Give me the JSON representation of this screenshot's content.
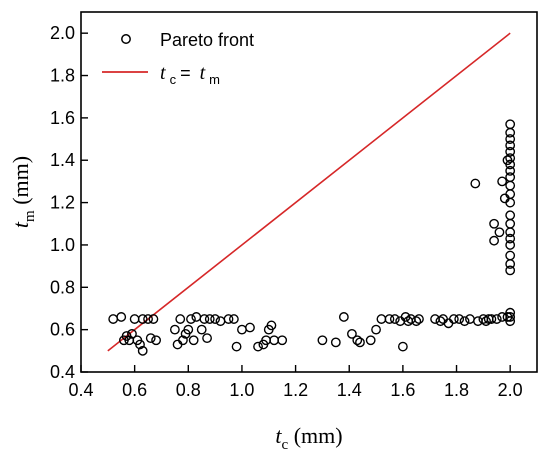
{
  "chart_data": {
    "type": "scatter",
    "x_axis": {
      "label_main": "t",
      "label_sub": "c",
      "label_unit": " (mm)",
      "range": [
        0.4,
        2.1
      ],
      "ticks": [
        0.4,
        0.6,
        0.8,
        1.0,
        1.2,
        1.4,
        1.6,
        1.8,
        2.0
      ],
      "tick_labels": [
        "0.4",
        "0.6",
        "0.8",
        "1.0",
        "1.2",
        "1.4",
        "1.6",
        "1.8",
        "2.0"
      ]
    },
    "y_axis": {
      "label_main": "t",
      "label_sub": "m",
      "label_unit": " (mm)",
      "range": [
        0.4,
        2.1
      ],
      "ticks": [
        0.4,
        0.6,
        0.8,
        1.0,
        1.2,
        1.4,
        1.6,
        1.8,
        2.0
      ],
      "tick_labels": [
        "0.4",
        "0.6",
        "0.8",
        "1.0",
        "1.2",
        "1.4",
        "1.6",
        "1.8",
        "2.0"
      ]
    },
    "grid": false,
    "legend_position": "top-left",
    "series": [
      {
        "name": "Pareto front",
        "kind": "scatter",
        "marker": "open-circle",
        "color": "#000000",
        "points": [
          [
            0.52,
            0.65
          ],
          [
            0.55,
            0.66
          ],
          [
            0.57,
            0.57
          ],
          [
            0.58,
            0.55
          ],
          [
            0.59,
            0.58
          ],
          [
            0.6,
            0.65
          ],
          [
            0.61,
            0.55
          ],
          [
            0.62,
            0.53
          ],
          [
            0.63,
            0.5
          ],
          [
            0.63,
            0.65
          ],
          [
            0.65,
            0.65
          ],
          [
            0.66,
            0.56
          ],
          [
            0.67,
            0.65
          ],
          [
            0.68,
            0.55
          ],
          [
            0.56,
            0.55
          ],
          [
            0.75,
            0.6
          ],
          [
            0.76,
            0.53
          ],
          [
            0.77,
            0.65
          ],
          [
            0.78,
            0.55
          ],
          [
            0.79,
            0.58
          ],
          [
            0.8,
            0.6
          ],
          [
            0.81,
            0.65
          ],
          [
            0.82,
            0.55
          ],
          [
            0.83,
            0.66
          ],
          [
            0.85,
            0.6
          ],
          [
            0.86,
            0.65
          ],
          [
            0.87,
            0.56
          ],
          [
            0.88,
            0.65
          ],
          [
            0.9,
            0.65
          ],
          [
            0.92,
            0.64
          ],
          [
            0.95,
            0.65
          ],
          [
            0.97,
            0.65
          ],
          [
            0.98,
            0.52
          ],
          [
            1.0,
            0.6
          ],
          [
            1.03,
            0.61
          ],
          [
            1.06,
            0.52
          ],
          [
            1.08,
            0.53
          ],
          [
            1.09,
            0.55
          ],
          [
            1.1,
            0.6
          ],
          [
            1.11,
            0.62
          ],
          [
            1.12,
            0.55
          ],
          [
            1.15,
            0.55
          ],
          [
            1.3,
            0.55
          ],
          [
            1.35,
            0.54
          ],
          [
            1.38,
            0.66
          ],
          [
            1.41,
            0.58
          ],
          [
            1.43,
            0.55
          ],
          [
            1.44,
            0.54
          ],
          [
            1.48,
            0.55
          ],
          [
            1.5,
            0.6
          ],
          [
            1.52,
            0.65
          ],
          [
            1.55,
            0.65
          ],
          [
            1.57,
            0.65
          ],
          [
            1.59,
            0.64
          ],
          [
            1.6,
            0.52
          ],
          [
            1.61,
            0.66
          ],
          [
            1.62,
            0.64
          ],
          [
            1.63,
            0.65
          ],
          [
            1.65,
            0.64
          ],
          [
            1.66,
            0.65
          ],
          [
            1.72,
            0.65
          ],
          [
            1.74,
            0.64
          ],
          [
            1.75,
            0.65
          ],
          [
            1.77,
            0.63
          ],
          [
            1.79,
            0.65
          ],
          [
            1.81,
            0.65
          ],
          [
            1.83,
            0.64
          ],
          [
            1.85,
            0.65
          ],
          [
            1.87,
            1.29
          ],
          [
            1.88,
            0.64
          ],
          [
            1.9,
            0.65
          ],
          [
            1.91,
            0.64
          ],
          [
            1.92,
            0.65
          ],
          [
            1.93,
            0.65
          ],
          [
            1.94,
            1.02
          ],
          [
            1.94,
            1.1
          ],
          [
            1.95,
            0.65
          ],
          [
            1.96,
            1.06
          ],
          [
            1.97,
            0.66
          ],
          [
            1.97,
            1.3
          ],
          [
            1.98,
            1.22
          ],
          [
            1.99,
            0.66
          ],
          [
            1.99,
            1.4
          ],
          [
            2.0,
            0.64
          ],
          [
            2.0,
            0.66
          ],
          [
            2.0,
            0.68
          ],
          [
            2.0,
            0.88
          ],
          [
            2.0,
            0.91
          ],
          [
            2.0,
            0.95
          ],
          [
            2.0,
            1.0
          ],
          [
            2.0,
            1.03
          ],
          [
            2.0,
            1.06
          ],
          [
            2.0,
            1.1
          ],
          [
            2.0,
            1.14
          ],
          [
            2.0,
            1.2
          ],
          [
            2.0,
            1.24
          ],
          [
            2.0,
            1.28
          ],
          [
            2.0,
            1.32
          ],
          [
            2.0,
            1.35
          ],
          [
            2.0,
            1.38
          ],
          [
            2.0,
            1.41
          ],
          [
            2.0,
            1.44
          ],
          [
            2.0,
            1.47
          ],
          [
            2.0,
            1.5
          ],
          [
            2.0,
            1.53
          ],
          [
            2.0,
            1.57
          ]
        ]
      },
      {
        "name_main": "t",
        "name_sub": "c",
        "name_eq": " = ",
        "name_main2": "t",
        "name_sub2": "m",
        "kind": "line",
        "color": "#d62728",
        "points": [
          [
            0.5,
            0.5
          ],
          [
            2.0,
            2.0
          ]
        ]
      }
    ],
    "legend_label_1": "Pareto front"
  }
}
